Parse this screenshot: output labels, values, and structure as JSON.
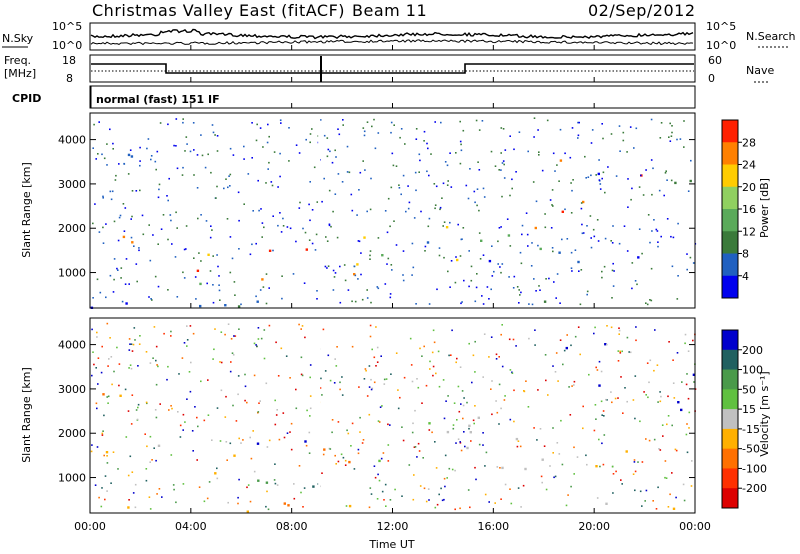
{
  "header": {
    "title": "Christmas Valley East (fitACF)",
    "beam": "Beam 11",
    "date": "02/Sep/2012"
  },
  "noise_panel": {
    "left_label": "N.Sky",
    "right_label": "N.Search",
    "left_ticks": [
      "10^5",
      "10^0"
    ],
    "right_ticks": [
      "10^5",
      "10^0"
    ]
  },
  "freq_panel": {
    "left_label_top": "Freq.",
    "left_label_bottom": "[MHz]",
    "right_label": "Nave",
    "left_ticks": [
      "18",
      "8"
    ],
    "right_ticks": [
      "60",
      "0"
    ]
  },
  "cpid": {
    "label": "CPID",
    "mode": "normal (fast) 151 IF"
  },
  "colors": {
    "power": [
      "#0000ee",
      "#2060c0",
      "#3a7a3a",
      "#5aaa5a",
      "#90d060",
      "#ffcc00",
      "#ff8000",
      "#ff2000"
    ],
    "velocity": [
      "#0000cc",
      "#206060",
      "#4a9a4a",
      "#60c040",
      "#c0c0c0",
      "#ffb000",
      "#ff7000",
      "#ff3000",
      "#dd0000"
    ]
  },
  "chart_data": [
    {
      "type": "heatmap",
      "panel": "power",
      "ylabel": "Slant Range [km]",
      "yticks": [
        "1000",
        "2000",
        "3000",
        "4000"
      ],
      "ylim": [
        200,
        4600
      ],
      "xlabel": "Time UT",
      "xticks": [
        "00:00",
        "04:00",
        "08:00",
        "12:00",
        "16:00",
        "20:00",
        "00:00"
      ],
      "xlim_hours": [
        0,
        24
      ],
      "colorbar": {
        "label": "Power [dB]",
        "ticks": [
          "28",
          "24",
          "20",
          "16",
          "12",
          "8",
          "4"
        ]
      }
    },
    {
      "type": "heatmap",
      "panel": "velocity",
      "ylabel": "Slant Range [km]",
      "yticks": [
        "1000",
        "2000",
        "3000",
        "4000"
      ],
      "ylim": [
        200,
        4600
      ],
      "xlabel": "Time UT",
      "xticks": [
        "00:00",
        "04:00",
        "08:00",
        "12:00",
        "16:00",
        "20:00",
        "00:00"
      ],
      "xlim_hours": [
        0,
        24
      ],
      "colorbar": {
        "label": "Velocity [m s⁻¹]",
        "ticks": [
          "200",
          "100",
          "50",
          "15",
          "-15",
          "-50",
          "-100",
          "-200"
        ]
      }
    }
  ]
}
